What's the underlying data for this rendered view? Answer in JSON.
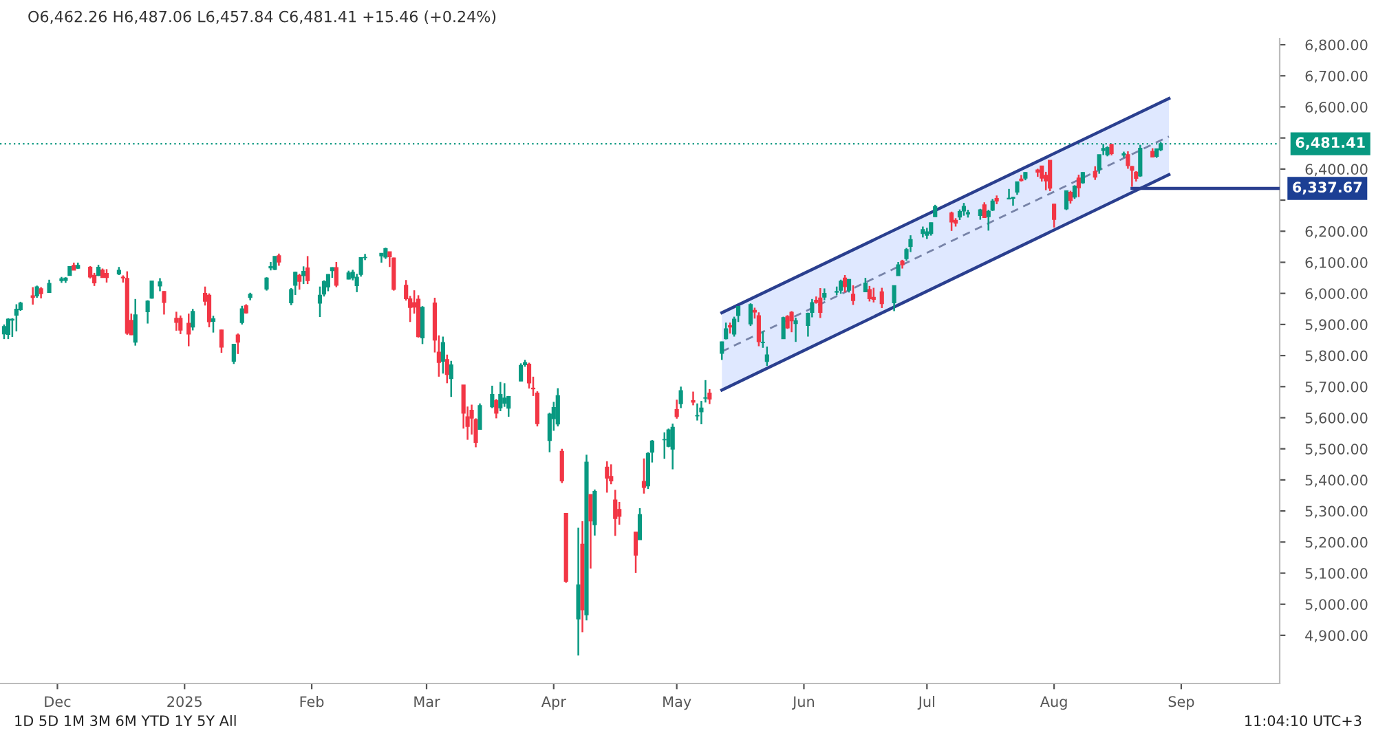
{
  "chart_data": {
    "type": "candlestick",
    "title": "O6,462.26 H6,487.06 L6,457.84 C6,481.41 +15.46 (+0.24%)",
    "x": [
      "2024-11-18",
      "2024-11-19",
      "2024-11-20",
      "2024-11-21",
      "2024-11-22",
      "2024-11-25",
      "2024-11-26",
      "2024-11-27",
      "2024-11-29",
      "2024-12-02",
      "2024-12-03",
      "2024-12-04",
      "2024-12-05",
      "2024-12-06",
      "2024-12-09",
      "2024-12-10",
      "2024-12-11",
      "2024-12-12",
      "2024-12-13",
      "2024-12-16",
      "2024-12-17",
      "2024-12-18",
      "2024-12-19",
      "2024-12-20",
      "2024-12-23",
      "2024-12-24",
      "2024-12-26",
      "2024-12-27",
      "2024-12-30",
      "2024-12-31",
      "2025-01-02",
      "2025-01-03",
      "2025-01-06",
      "2025-01-07",
      "2025-01-08",
      "2025-01-10",
      "2025-01-13",
      "2025-01-14",
      "2025-01-15",
      "2025-01-16",
      "2025-01-17",
      "2025-01-21",
      "2025-01-22",
      "2025-01-23",
      "2025-01-24",
      "2025-01-27",
      "2025-01-28",
      "2025-01-29",
      "2025-01-30",
      "2025-01-31",
      "2025-02-03",
      "2025-02-04",
      "2025-02-05",
      "2025-02-06",
      "2025-02-07",
      "2025-02-10",
      "2025-02-11",
      "2025-02-12",
      "2025-02-13",
      "2025-02-14",
      "2025-02-18",
      "2025-02-19",
      "2025-02-20",
      "2025-02-21",
      "2025-02-24",
      "2025-02-25",
      "2025-02-26",
      "2025-02-27",
      "2025-02-28",
      "2025-03-03",
      "2025-03-04",
      "2025-03-05",
      "2025-03-06",
      "2025-03-07",
      "2025-03-10",
      "2025-03-11",
      "2025-03-12",
      "2025-03-13",
      "2025-03-14",
      "2025-03-17",
      "2025-03-18",
      "2025-03-19",
      "2025-03-20",
      "2025-03-21",
      "2025-03-24",
      "2025-03-25",
      "2025-03-26",
      "2025-03-27",
      "2025-03-28",
      "2025-03-31",
      "2025-04-01",
      "2025-04-02",
      "2025-04-03",
      "2025-04-04",
      "2025-04-07",
      "2025-04-08",
      "2025-04-09",
      "2025-04-10",
      "2025-04-11",
      "2025-04-14",
      "2025-04-15",
      "2025-04-16",
      "2025-04-17",
      "2025-04-21",
      "2025-04-22",
      "2025-04-23",
      "2025-04-24",
      "2025-04-25",
      "2025-04-28",
      "2025-04-29",
      "2025-04-30",
      "2025-05-01",
      "2025-05-02",
      "2025-05-05",
      "2025-05-06",
      "2025-05-07",
      "2025-05-08",
      "2025-05-09",
      "2025-05-12",
      "2025-05-13",
      "2025-05-14",
      "2025-05-15",
      "2025-05-16",
      "2025-05-19",
      "2025-05-20",
      "2025-05-21",
      "2025-05-22",
      "2025-05-23",
      "2025-05-27",
      "2025-05-28",
      "2025-05-29",
      "2025-05-30",
      "2025-06-02",
      "2025-06-03",
      "2025-06-04",
      "2025-06-05",
      "2025-06-06",
      "2025-06-09",
      "2025-06-10",
      "2025-06-11",
      "2025-06-12",
      "2025-06-13",
      "2025-06-16",
      "2025-06-17",
      "2025-06-18",
      "2025-06-20",
      "2025-06-23",
      "2025-06-24",
      "2025-06-25",
      "2025-06-26",
      "2025-06-27",
      "2025-06-30",
      "2025-07-01",
      "2025-07-02",
      "2025-07-03",
      "2025-07-07",
      "2025-07-08",
      "2025-07-09",
      "2025-07-10",
      "2025-07-11",
      "2025-07-14",
      "2025-07-15",
      "2025-07-16",
      "2025-07-17",
      "2025-07-18",
      "2025-07-21",
      "2025-07-22",
      "2025-07-23",
      "2025-07-24",
      "2025-07-25",
      "2025-07-28",
      "2025-07-29",
      "2025-07-30",
      "2025-07-31",
      "2025-08-01",
      "2025-08-04",
      "2025-08-05",
      "2025-08-06",
      "2025-08-07",
      "2025-08-08",
      "2025-08-11",
      "2025-08-12",
      "2025-08-13",
      "2025-08-14",
      "2025-08-15",
      "2025-08-18",
      "2025-08-19",
      "2025-08-20",
      "2025-08-21",
      "2025-08-22",
      "2025-08-25",
      "2025-08-26",
      "2025-08-27"
    ],
    "ohlc": [
      [
        5870,
        5900,
        5853,
        5893
      ],
      [
        5868,
        5920,
        5853,
        5917
      ],
      [
        5914,
        5920,
        5860,
        5917
      ],
      [
        5930,
        5965,
        5878,
        5949
      ],
      [
        5948,
        5973,
        5944,
        5969
      ],
      [
        5992,
        6020,
        5964,
        5987
      ],
      [
        5992,
        6025,
        5986,
        6021
      ],
      [
        6015,
        6020,
        5984,
        5999
      ],
      [
        6003,
        6044,
        6003,
        6032
      ],
      [
        6041,
        6053,
        6034,
        6047
      ],
      [
        6042,
        6052,
        6034,
        6049
      ],
      [
        6058,
        6087,
        6057,
        6086
      ],
      [
        6090,
        6099,
        6075,
        6075
      ],
      [
        6081,
        6099,
        6079,
        6090
      ],
      [
        6084,
        6088,
        6048,
        6053
      ],
      [
        6058,
        6066,
        6024,
        6034
      ],
      [
        6058,
        6092,
        6056,
        6084
      ],
      [
        6075,
        6080,
        6051,
        6051
      ],
      [
        6064,
        6078,
        6035,
        6051
      ],
      [
        6063,
        6085,
        6059,
        6074
      ],
      [
        6052,
        6058,
        6035,
        6050
      ],
      [
        6048,
        6071,
        5867,
        5872
      ],
      [
        5913,
        5935,
        5866,
        5867
      ],
      [
        5843,
        5982,
        5832,
        5931
      ],
      [
        5941,
        5978,
        5903,
        5975
      ],
      [
        5985,
        6040,
        5983,
        6040
      ],
      [
        6024,
        6049,
        6007,
        6037
      ],
      [
        6006,
        6007,
        5932,
        5971
      ],
      [
        5920,
        5941,
        5880,
        5907
      ],
      [
        5920,
        5929,
        5869,
        5882
      ],
      [
        5904,
        5935,
        5830,
        5869
      ],
      [
        5892,
        5950,
        5881,
        5942
      ],
      [
        6000,
        6022,
        5961,
        5975
      ],
      [
        5994,
        6000,
        5891,
        5909
      ],
      [
        5910,
        5928,
        5874,
        5918
      ],
      [
        5882,
        5883,
        5809,
        5827
      ],
      [
        5782,
        5836,
        5773,
        5836
      ],
      [
        5866,
        5871,
        5805,
        5843
      ],
      [
        5906,
        5960,
        5900,
        5950
      ],
      [
        5960,
        5965,
        5935,
        5937
      ],
      [
        5987,
        6002,
        5978,
        5997
      ],
      [
        6014,
        6052,
        6009,
        6049
      ],
      [
        6082,
        6101,
        6074,
        6086
      ],
      [
        6077,
        6119,
        6075,
        6119
      ],
      [
        6121,
        6128,
        6089,
        6101
      ],
      [
        5970,
        6017,
        5962,
        6012
      ],
      [
        6026,
        6070,
        5995,
        6068
      ],
      [
        6058,
        6063,
        6012,
        6039
      ],
      [
        6057,
        6087,
        6030,
        6071
      ],
      [
        6082,
        6120,
        6030,
        6041
      ],
      [
        5969,
        6022,
        5924,
        5994
      ],
      [
        5998,
        6042,
        5990,
        6038
      ],
      [
        6021,
        6062,
        6007,
        6061
      ],
      [
        6073,
        6084,
        6050,
        6083
      ],
      [
        6083,
        6101,
        6020,
        6026
      ],
      [
        6046,
        6073,
        6045,
        6066
      ],
      [
        6050,
        6076,
        6042,
        6068
      ],
      [
        6025,
        6063,
        6004,
        6052
      ],
      [
        6061,
        6116,
        6054,
        6115
      ],
      [
        6115,
        6127,
        6107,
        6115
      ],
      [
        6121,
        6129,
        6099,
        6129
      ],
      [
        6117,
        6147,
        6111,
        6144
      ],
      [
        6134,
        6134,
        6085,
        6118
      ],
      [
        6114,
        6115,
        6009,
        6013
      ],
      [
        6026,
        6043,
        5977,
        5983
      ],
      [
        5982,
        5992,
        5908,
        5955
      ],
      [
        5970,
        6010,
        5935,
        5956
      ],
      [
        5981,
        5994,
        5858,
        5861
      ],
      [
        5857,
        5959,
        5837,
        5955
      ],
      [
        5969,
        5986,
        5810,
        5850
      ],
      [
        5811,
        5865,
        5732,
        5778
      ],
      [
        5782,
        5861,
        5742,
        5842
      ],
      [
        5787,
        5803,
        5711,
        5739
      ],
      [
        5726,
        5783,
        5667,
        5770
      ],
      [
        5705,
        5705,
        5565,
        5615
      ],
      [
        5603,
        5636,
        5529,
        5572
      ],
      [
        5624,
        5642,
        5546,
        5599
      ],
      [
        5594,
        5598,
        5505,
        5521
      ],
      [
        5563,
        5646,
        5563,
        5639
      ],
      [
        5635,
        5703,
        5631,
        5675
      ],
      [
        5655,
        5660,
        5598,
        5615
      ],
      [
        5632,
        5715,
        5621,
        5675
      ],
      [
        5647,
        5711,
        5635,
        5663
      ],
      [
        5631,
        5670,
        5603,
        5668
      ],
      [
        5718,
        5775,
        5718,
        5768
      ],
      [
        5771,
        5786,
        5764,
        5777
      ],
      [
        5772,
        5777,
        5694,
        5712
      ],
      [
        5695,
        5732,
        5670,
        5693
      ],
      [
        5679,
        5685,
        5572,
        5581
      ],
      [
        5527,
        5616,
        5489,
        5612
      ],
      [
        5597,
        5651,
        5558,
        5633
      ],
      [
        5580,
        5695,
        5572,
        5671
      ],
      [
        5492,
        5500,
        5390,
        5397
      ],
      [
        5292,
        5292,
        5069,
        5074
      ],
      [
        4953,
        5246,
        4835,
        5062
      ],
      [
        5193,
        5267,
        4910,
        4982
      ],
      [
        4966,
        5481,
        4948,
        5457
      ],
      [
        5353,
        5353,
        5115,
        5268
      ],
      [
        5256,
        5369,
        5221,
        5363
      ],
      [
        5441,
        5460,
        5359,
        5406
      ],
      [
        5411,
        5450,
        5386,
        5397
      ],
      [
        5335,
        5368,
        5220,
        5276
      ],
      [
        5305,
        5329,
        5256,
        5283
      ],
      [
        5232,
        5232,
        5101,
        5158
      ],
      [
        5208,
        5309,
        5208,
        5288
      ],
      [
        5395,
        5469,
        5356,
        5376
      ],
      [
        5381,
        5489,
        5371,
        5485
      ],
      [
        5489,
        5528,
        5456,
        5525
      ],
      [
        5529,
        5553,
        5468,
        5529
      ],
      [
        5508,
        5565,
        5505,
        5561
      ],
      [
        5499,
        5581,
        5434,
        5569
      ],
      [
        5626,
        5658,
        5597,
        5604
      ],
      [
        5645,
        5700,
        5631,
        5687
      ],
      [
        5655,
        5684,
        5640,
        5650
      ],
      [
        5606,
        5646,
        5591,
        5607
      ],
      [
        5619,
        5654,
        5579,
        5631
      ],
      [
        5663,
        5721,
        5649,
        5664
      ],
      [
        5679,
        5692,
        5644,
        5660
      ],
      [
        5807,
        5845,
        5786,
        5844
      ],
      [
        5854,
        5906,
        5852,
        5886
      ],
      [
        5896,
        5906,
        5871,
        5892
      ],
      [
        5869,
        5925,
        5861,
        5917
      ],
      [
        5929,
        5959,
        5908,
        5958
      ],
      [
        5902,
        5968,
        5895,
        5964
      ],
      [
        5945,
        5954,
        5919,
        5940
      ],
      [
        5928,
        5939,
        5830,
        5845
      ],
      [
        5842,
        5878,
        5825,
        5842
      ],
      [
        5781,
        5829,
        5767,
        5802
      ],
      [
        5854,
        5925,
        5854,
        5922
      ],
      [
        5926,
        5930,
        5886,
        5889
      ],
      [
        5939,
        5943,
        5875,
        5912
      ],
      [
        5903,
        5922,
        5844,
        5912
      ],
      [
        5897,
        5938,
        5861,
        5936
      ],
      [
        5939,
        5982,
        5923,
        5970
      ],
      [
        5978,
        5990,
        5967,
        5971
      ],
      [
        5985,
        6017,
        5921,
        5939
      ],
      [
        5988,
        6016,
        5978,
        6000
      ],
      [
        6004,
        6022,
        5994,
        6006
      ],
      [
        6010,
        6044,
        5999,
        6039
      ],
      [
        6049,
        6059,
        6003,
        6022
      ],
      [
        6010,
        6046,
        6003,
        6045
      ],
      [
        5997,
        6026,
        5963,
        5977
      ],
      [
        6005,
        6050,
        6005,
        6033
      ],
      [
        6012,
        6024,
        5974,
        5983
      ],
      [
        5987,
        6018,
        5971,
        5981
      ],
      [
        6005,
        6018,
        5953,
        5967
      ],
      [
        5970,
        6025,
        5943,
        6025
      ],
      [
        6057,
        6101,
        6057,
        6092
      ],
      [
        6104,
        6108,
        6080,
        6092
      ],
      [
        6112,
        6146,
        6105,
        6141
      ],
      [
        6151,
        6187,
        6133,
        6173
      ],
      [
        6193,
        6215,
        6180,
        6205
      ],
      [
        6187,
        6211,
        6175,
        6198
      ],
      [
        6193,
        6228,
        6186,
        6227
      ],
      [
        6247,
        6285,
        6246,
        6279
      ],
      [
        6259,
        6263,
        6201,
        6230
      ],
      [
        6235,
        6242,
        6215,
        6226
      ],
      [
        6246,
        6270,
        6236,
        6263
      ],
      [
        6265,
        6291,
        6250,
        6280
      ],
      [
        6256,
        6269,
        6244,
        6260
      ],
      [
        6251,
        6272,
        6237,
        6269
      ],
      [
        6285,
        6293,
        6243,
        6244
      ],
      [
        6247,
        6269,
        6202,
        6264
      ],
      [
        6268,
        6304,
        6265,
        6297
      ],
      [
        6305,
        6315,
        6287,
        6297
      ],
      [
        6304,
        6336,
        6303,
        6306
      ],
      [
        6306,
        6310,
        6282,
        6309
      ],
      [
        6326,
        6360,
        6317,
        6359
      ],
      [
        6368,
        6381,
        6360,
        6363
      ],
      [
        6371,
        6390,
        6364,
        6389
      ],
      [
        6397,
        6401,
        6375,
        6390
      ],
      [
        6410,
        6410,
        6360,
        6371
      ],
      [
        6380,
        6391,
        6332,
        6362
      ],
      [
        6428,
        6428,
        6329,
        6339
      ],
      [
        6287,
        6288,
        6212,
        6238
      ],
      [
        6272,
        6330,
        6268,
        6330
      ],
      [
        6325,
        6330,
        6289,
        6299
      ],
      [
        6310,
        6348,
        6304,
        6345
      ],
      [
        6371,
        6382,
        6310,
        6340
      ],
      [
        6356,
        6390,
        6353,
        6389
      ],
      [
        6392,
        6409,
        6365,
        6374
      ],
      [
        6398,
        6446,
        6385,
        6446
      ],
      [
        6460,
        6481,
        6445,
        6466
      ],
      [
        6446,
        6473,
        6441,
        6469
      ],
      [
        6479,
        6481,
        6444,
        6450
      ],
      [
        6445,
        6456,
        6437,
        6449
      ],
      [
        6446,
        6457,
        6401,
        6411
      ],
      [
        6408,
        6410,
        6343,
        6396
      ],
      [
        6390,
        6393,
        6360,
        6370
      ],
      [
        6378,
        6478,
        6375,
        6467
      ],
      [
        6457,
        6467,
        6438,
        6439
      ],
      [
        6441,
        6466,
        6436,
        6465
      ],
      [
        6462.26,
        6487.06,
        6457.84,
        6481.41
      ]
    ],
    "colors": [
      "#089981",
      "#089981",
      "#089981",
      "#089981",
      "#089981",
      "#f23645",
      "#089981",
      "#f23645",
      "#089981",
      "#089981",
      "#089981",
      "#089981",
      "#f23645",
      "#089981",
      "#f23645",
      "#f23645",
      "#089981",
      "#f23645",
      "#f23645",
      "#089981",
      "#f23645",
      "#f23645",
      "#f23645",
      "#089981",
      "#089981",
      "#089981",
      "#089981",
      "#f23645",
      "#f23645",
      "#f23645",
      "#f23645",
      "#089981",
      "#f23645",
      "#f23645",
      "#089981",
      "#f23645",
      "#089981",
      "#f23645",
      "#089981",
      "#f23645",
      "#089981",
      "#089981",
      "#089981",
      "#089981",
      "#f23645",
      "#089981",
      "#089981",
      "#f23645",
      "#089981",
      "#f23645",
      "#089981",
      "#089981",
      "#089981",
      "#089981",
      "#f23645",
      "#089981",
      "#089981",
      "#089981",
      "#089981",
      "#089981",
      "#089981",
      "#089981",
      "#f23645",
      "#f23645",
      "#f23645",
      "#f23645",
      "#f23645",
      "#f23645",
      "#089981",
      "#f23645",
      "#f23645",
      "#089981",
      "#f23645",
      "#089981",
      "#f23645",
      "#f23645",
      "#f23645",
      "#f23645",
      "#089981",
      "#089981",
      "#f23645",
      "#089981",
      "#089981",
      "#089981",
      "#089981",
      "#089981",
      "#f23645",
      "#f23645",
      "#f23645",
      "#089981",
      "#089981",
      "#089981",
      "#f23645",
      "#f23645",
      "#089981",
      "#f23645",
      "#089981",
      "#f23645",
      "#089981",
      "#f23645",
      "#f23645",
      "#f23645",
      "#f23645",
      "#f23645",
      "#089981",
      "#f23645",
      "#089981",
      "#089981",
      "#089981",
      "#089981",
      "#089981",
      "#f23645",
      "#089981",
      "#f23645",
      "#089981",
      "#089981",
      "#089981",
      "#f23645",
      "#089981",
      "#089981",
      "#f23645",
      "#089981",
      "#089981",
      "#089981",
      "#f23645",
      "#f23645",
      "#089981",
      "#089981",
      "#089981",
      "#f23645",
      "#f23645",
      "#089981",
      "#089981",
      "#089981",
      "#f23645",
      "#f23645",
      "#089981",
      "#089981",
      "#089981",
      "#f23645",
      "#089981",
      "#f23645",
      "#089981",
      "#f23645",
      "#f23645",
      "#f23645",
      "#089981",
      "#089981",
      "#f23645",
      "#089981",
      "#089981",
      "#089981",
      "#089981",
      "#089981",
      "#089981",
      "#f23645",
      "#f23645",
      "#089981",
      "#089981",
      "#089981",
      "#089981",
      "#f23645",
      "#089981",
      "#089981",
      "#f23645",
      "#089981",
      "#089981",
      "#089981",
      "#f23645",
      "#089981",
      "#f23645",
      "#f23645",
      "#f23645",
      "#f23645",
      "#f23645",
      "#089981",
      "#f23645",
      "#089981",
      "#f23645",
      "#089981",
      "#f23645",
      "#089981",
      "#089981",
      "#089981",
      "#f23645",
      "#089981",
      "#f23645",
      "#f23645",
      "#f23645",
      "#089981",
      "#f23645",
      "#089981",
      "#089981"
    ],
    "series": [
      {
        "type": "line",
        "x": [
          "2025-05-12",
          "2025-08-29"
        ],
        "values": [
          5813,
          6505
        ],
        "lower": [
          5689,
          6382
        ],
        "upper": [
          5938,
          6627
        ],
        "color": "#7783a8",
        "line_style": "dashed"
      },
      {
        "type": "line",
        "x": [
          "2025-05-12",
          "2025-08-29"
        ],
        "values": [
          5938,
          6627
        ],
        "color": "#2a3f8f",
        "line_style": "solid"
      },
      {
        "type": "line",
        "x": [
          "2025-05-12",
          "2025-08-29"
        ],
        "values": [
          5689,
          6382
        ],
        "color": "#2a3f8f",
        "line_style": "solid"
      },
      {
        "type": "line",
        "x": [
          "2025-08-20",
          "2025-09-25"
        ],
        "values": [
          6337.67,
          6337.67
        ],
        "color": "#2a3f8f",
        "line_style": "solid"
      }
    ],
    "ref_lines": [
      {
        "axis": "y",
        "value": 6481.41,
        "label": "6,481.41",
        "color": "#089981",
        "line_style": "dotted"
      }
    ],
    "annotations": [
      {
        "text": "6,337.67",
        "x": "2025-09-25",
        "y": 6337.67
      },
      "1D 5D 1M 3M 6M YTD 1Y 5Y All",
      "11:04:10 UTC+3"
    ],
    "xlim": [
      "2024-11-17",
      "2025-09-25"
    ],
    "xticks": [
      {
        "value": "2024-12-01",
        "label": "Dec"
      },
      {
        "value": "2025-01-01",
        "label": "2025"
      },
      {
        "value": "2025-02-01",
        "label": "Feb"
      },
      {
        "value": "2025-03-01",
        "label": "Mar"
      },
      {
        "value": "2025-04-01",
        "label": "Apr"
      },
      {
        "value": "2025-05-01",
        "label": "May"
      },
      {
        "value": "2025-06-01",
        "label": "Jun"
      },
      {
        "value": "2025-07-01",
        "label": "Jul"
      },
      {
        "value": "2025-08-01",
        "label": "Aug"
      },
      {
        "value": "2025-09-01",
        "label": "Sep"
      }
    ],
    "ylim": [
      4745,
      6820
    ],
    "yticks": [
      {
        "value": 4900,
        "label": "4,900.00"
      },
      {
        "value": 5000,
        "label": "5,000.00"
      },
      {
        "value": 5100,
        "label": "5,100.00"
      },
      {
        "value": 5200,
        "label": "5,200.00"
      },
      {
        "value": 5300,
        "label": "5,300.00"
      },
      {
        "value": 5400,
        "label": "5,400.00"
      },
      {
        "value": 5500,
        "label": "5,500.00"
      },
      {
        "value": 5600,
        "label": "5,600.00"
      },
      {
        "value": 5700,
        "label": "5,700.00"
      },
      {
        "value": 5800,
        "label": "5,800.00"
      },
      {
        "value": 5900,
        "label": "5,900.00"
      },
      {
        "value": 6000,
        "label": "6,000.00"
      },
      {
        "value": 6100,
        "label": "6,100.00"
      },
      {
        "value": 6200,
        "label": "6,200.00"
      },
      {
        "value": 6300,
        "label": null
      },
      {
        "value": 6400,
        "label": "6,400.00"
      },
      {
        "value": 6500,
        "label": null
      },
      {
        "value": 6600,
        "label": "6,600.00"
      },
      {
        "value": 6700,
        "label": "6,700.00"
      },
      {
        "value": 6800,
        "label": "6,800.00"
      }
    ],
    "grid": false,
    "legend": false
  }
}
